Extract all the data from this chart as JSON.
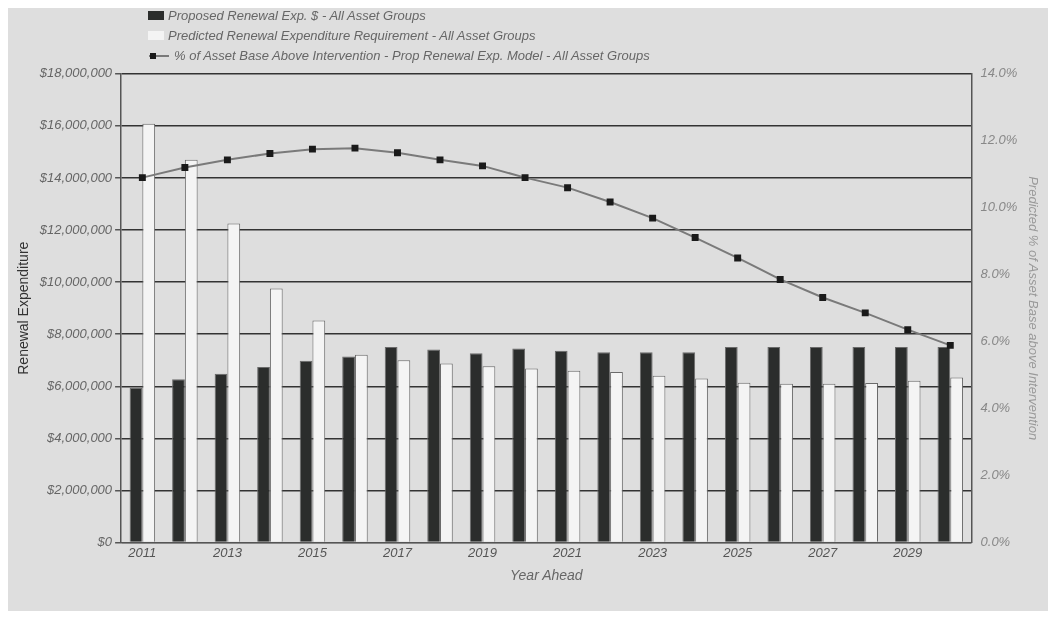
{
  "chart_data": {
    "type": "bar",
    "xlabel": "Year Ahead",
    "ylabel": "Renewal Expenditure",
    "y2label": "Predicted % of Asset Base above Intervention",
    "categories": [
      "2011",
      null,
      "2013",
      null,
      "2015",
      null,
      "2017",
      null,
      "2019",
      null,
      "2021",
      null,
      "2023",
      null,
      "2025",
      null,
      "2027",
      null,
      "2029",
      null
    ],
    "series": [
      {
        "name": "Proposed Renewal Exp. $ -  All Asset Groups",
        "color": "#2b2d2c",
        "values": [
          5950000,
          6270000,
          6480000,
          6740000,
          6980000,
          7150000,
          7510000,
          7410000,
          7270000,
          7450000,
          7370000,
          7310000,
          7310000,
          7310000,
          7510000,
          7510000,
          7510000,
          7510000,
          7510000,
          7510000
        ]
      },
      {
        "name": "Predicted Renewal Expenditure Requirement -  All Asset Groups",
        "color": "#f4f4f4",
        "values": [
          16080000,
          14700000,
          12250000,
          9760000,
          8530000,
          7210000,
          7000000,
          6880000,
          6770000,
          6680000,
          6600000,
          6550000,
          6410000,
          6300000,
          6140000,
          6100000,
          6100000,
          6130000,
          6210000,
          6340000
        ]
      },
      {
        "name": "% of Asset Base Above Intervention - Prop Renewal Exp. Model -  All Asset Groups",
        "type": "line",
        "axis": "y2",
        "color": "#7a7a7a",
        "marker": "square",
        "values": [
          10.9,
          11.2,
          11.43,
          11.62,
          11.75,
          11.78,
          11.64,
          11.43,
          11.25,
          10.9,
          10.6,
          10.17,
          9.69,
          9.11,
          8.5,
          7.86,
          7.32,
          6.86,
          6.36,
          5.89
        ]
      }
    ],
    "ylim": [
      0,
      18000000
    ],
    "yticks": [
      {
        "value": 0,
        "label": "$0"
      },
      {
        "value": 2000000,
        "label": "$2,000,000"
      },
      {
        "value": 4000000,
        "label": "$4,000,000"
      },
      {
        "value": 6000000,
        "label": "$6,000,000"
      },
      {
        "value": 8000000,
        "label": "$8,000,000"
      },
      {
        "value": 10000000,
        "label": "$10,000,000"
      },
      {
        "value": 12000000,
        "label": "$12,000,000"
      },
      {
        "value": 14000000,
        "label": "$14,000,000"
      },
      {
        "value": 16000000,
        "label": "$16,000,000"
      },
      {
        "value": 18000000,
        "label": "$18,000,000"
      }
    ],
    "y2lim": [
      0,
      14
    ],
    "y2ticks": [
      {
        "value": 0,
        "label": "0.0%"
      },
      {
        "value": 2,
        "label": "2.0%"
      },
      {
        "value": 4,
        "label": "4.0%"
      },
      {
        "value": 6,
        "label": "6.0%"
      },
      {
        "value": 8,
        "label": "8.0%"
      },
      {
        "value": 10,
        "label": "10.0%"
      },
      {
        "value": 12,
        "label": "12.0%"
      },
      {
        "value": 14,
        "label": "14.0%"
      }
    ],
    "grid": "y",
    "legend": "top left"
  }
}
